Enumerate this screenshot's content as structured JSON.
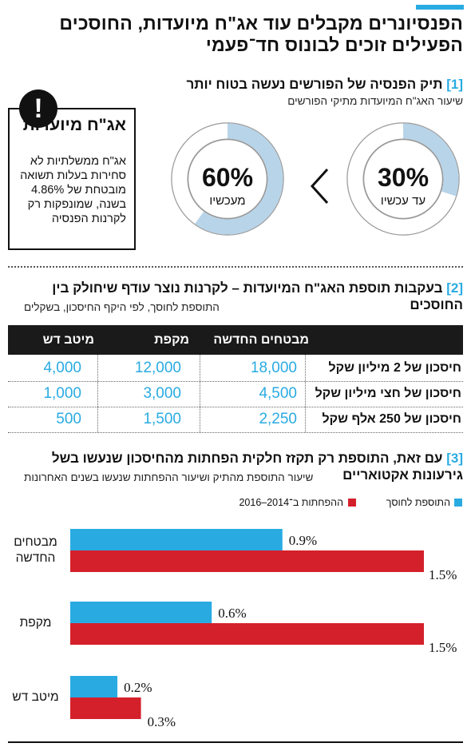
{
  "headline": "הפנסיונרים מקבלים עוד אג\"ח מיועדות, החוסכים הפעילים זוכים לבונוס חד־פעמי",
  "colors": {
    "accent": "#29abe2",
    "donut_fill": "#b8d4e9",
    "red": "#d4202b",
    "dark": "#1a1a1a"
  },
  "section1": {
    "num": "[1]",
    "title": "תיק הפנסיה של הפורשים נעשה בטוח יותר",
    "subtitle": "שיעור האג\"ח המיועדות מתיקי הפורשים",
    "now": {
      "pct": "60%",
      "label": "מעכשיו",
      "value": 60
    },
    "before": {
      "pct": "30%",
      "label": "עד עכשיו",
      "value": 30
    },
    "alert": {
      "badge": "!",
      "title": "אג\"ח מיועדות",
      "body": "אג\"ח ממשלתיות לא סחירות בעלות תשואה מובטחת של 4.86% בשנה, שמונפקות רק לקרנות הפנסיה"
    }
  },
  "section2": {
    "num": "[2]",
    "title": "בעקבות תוספת האג\"ח המיועדות – לקרנות נוצר עודף שיחולק בין החוסכים",
    "subtitle": "התוספת לחוסך, לפי היקף החיסכון, בשקלים",
    "columns": [
      "מבטחים החדשה",
      "מקפת",
      "מיטב דש"
    ],
    "rows": [
      {
        "label": "חיסכון של 2 מיליון שקל",
        "values": [
          "18,000",
          "12,000",
          "4,000"
        ]
      },
      {
        "label": "חיסכון של חצי מיליון שקל",
        "values": [
          "4,500",
          "3,000",
          "1,000"
        ]
      },
      {
        "label": "חיסכון של 250 אלף שקל",
        "values": [
          "2,250",
          "1,500",
          "500"
        ]
      }
    ]
  },
  "section3": {
    "num": "[3]",
    "title": "עם זאת, התוספת רק תקזז חלקית הפחתות מהחיסכון שנעשו בשל גירעונות אקטואריים",
    "subtitle": "שיעור התוספת מהתיק ושיעור ההפחתות שנעשו בשנים האחרונות",
    "legend": {
      "bonus": "התוספת לחוסך",
      "cuts": "ההפחתות ב־2014–2016"
    }
  },
  "chart_data": {
    "type": "bar",
    "orientation": "horizontal",
    "categories": [
      "מבטחים החדשה",
      "מקפת",
      "מיטב דש"
    ],
    "series": [
      {
        "name": "התוספת לחוסך",
        "values": [
          0.9,
          0.6,
          0.2
        ],
        "labels": [
          "0.9%",
          "0.6%",
          "0.2%"
        ],
        "color": "#29abe2"
      },
      {
        "name": "ההפחתות ב־2014–2016",
        "values": [
          1.5,
          1.5,
          0.3
        ],
        "labels": [
          "1.5%",
          "1.5%",
          "0.3%"
        ],
        "color": "#d4202b"
      }
    ],
    "xlim": [
      0,
      1.5
    ]
  }
}
